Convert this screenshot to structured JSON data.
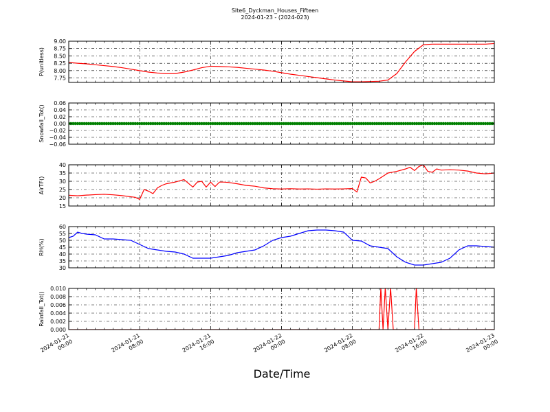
{
  "figure": {
    "title": "Site6_Dyckman_Houses_Fifteen",
    "subtitle": "2024-01-23 - (2024-023)",
    "xlabel": "Date/Time"
  },
  "chart_data": [
    {
      "type": "line",
      "ylabel": "P(unitless)",
      "ylim": [
        7.6,
        9.0
      ],
      "yticks": [
        "7.75",
        "8.00",
        "8.25",
        "8.50",
        "8.75",
        "9.00"
      ],
      "ytick_values": [
        7.75,
        8.0,
        8.25,
        8.5,
        8.75,
        9.0
      ],
      "color": "#ff0000",
      "grid": true,
      "x_hours": [
        0,
        1,
        2,
        3,
        4,
        5,
        6,
        7,
        8,
        9,
        10,
        11,
        12,
        13,
        14,
        15,
        16,
        17,
        18,
        19,
        20,
        21,
        22,
        23,
        24,
        25,
        26,
        27,
        28,
        29,
        30,
        31,
        32,
        33,
        34,
        35,
        36,
        37,
        38,
        39,
        40,
        41,
        42,
        43,
        44,
        45,
        46,
        47,
        48
      ],
      "values": [
        8.28,
        8.25,
        8.23,
        8.2,
        8.17,
        8.14,
        8.1,
        8.05,
        8.0,
        7.95,
        7.92,
        7.9,
        7.9,
        7.95,
        8.02,
        8.1,
        8.15,
        8.14,
        8.13,
        8.11,
        8.08,
        8.05,
        8.02,
        7.98,
        7.93,
        7.88,
        7.84,
        7.8,
        7.76,
        7.72,
        7.68,
        7.65,
        7.62,
        7.62,
        7.63,
        7.64,
        7.68,
        7.9,
        8.3,
        8.65,
        8.88,
        8.9,
        8.9,
        8.9,
        8.9,
        8.9,
        8.9,
        8.9,
        8.92
      ]
    },
    {
      "type": "scatter",
      "ylabel": "Snowfall_Tot()",
      "ylim": [
        -0.06,
        0.06
      ],
      "yticks": [
        "−0.06",
        "−0.04",
        "−0.02",
        "0.00",
        "0.02",
        "0.04",
        "0.06"
      ],
      "ytick_values": [
        -0.06,
        -0.04,
        -0.02,
        0.0,
        0.02,
        0.04,
        0.06
      ],
      "color": "#008000",
      "grid": true,
      "x_range_hours": [
        0,
        48
      ],
      "value": 0.0
    },
    {
      "type": "line",
      "ylabel": "AirTF()",
      "ylim": [
        15,
        40
      ],
      "yticks": [
        "15",
        "20",
        "25",
        "30",
        "35",
        "40"
      ],
      "ytick_values": [
        15,
        20,
        25,
        30,
        35,
        40
      ],
      "color": "#ff0000",
      "grid": true,
      "x_hours": [
        0,
        1,
        2,
        3,
        4,
        5,
        6,
        7,
        7.5,
        8,
        8.5,
        9,
        9.5,
        10,
        10.5,
        11,
        11.5,
        12,
        13,
        14,
        14.5,
        15,
        15.5,
        16,
        16.5,
        17,
        17.5,
        18,
        19,
        20,
        21,
        22,
        23,
        24,
        25,
        26,
        27,
        28,
        29,
        30,
        31,
        32,
        32.5,
        33,
        33.5,
        34,
        34.5,
        35,
        36,
        37,
        38,
        38.5,
        39,
        39.5,
        40,
        40.5,
        41,
        41.5,
        42,
        43,
        44,
        45,
        46,
        47,
        48
      ],
      "values": [
        21.5,
        21.2,
        21.6,
        21.9,
        22.1,
        21.8,
        21.3,
        20.6,
        20.3,
        19.0,
        25.0,
        24.0,
        22.5,
        26.0,
        27.5,
        28.5,
        29.0,
        29.5,
        31.0,
        26.5,
        29.5,
        30.0,
        26.5,
        29.5,
        26.8,
        29.5,
        29.5,
        29.3,
        28.5,
        27.5,
        27.0,
        26.0,
        25.5,
        25.3,
        25.5,
        25.3,
        25.4,
        25.2,
        25.4,
        25.3,
        25.4,
        25.6,
        23.5,
        32.5,
        32.0,
        29.0,
        30.0,
        31.5,
        35.0,
        36.0,
        37.5,
        38.5,
        36.5,
        39.0,
        40.0,
        36.0,
        35.5,
        37.5,
        36.8,
        37.0,
        36.8,
        36.2,
        35.0,
        34.5,
        35.0
      ]
    },
    {
      "type": "line",
      "ylabel": "RH(%)",
      "ylim": [
        30,
        60
      ],
      "yticks": [
        "30",
        "35",
        "40",
        "45",
        "50",
        "55",
        "60"
      ],
      "ytick_values": [
        30,
        35,
        40,
        45,
        50,
        55,
        60
      ],
      "color": "#0000ff",
      "grid": true,
      "x_hours": [
        0,
        0.5,
        1,
        1.5,
        2,
        3,
        4,
        5,
        6,
        7,
        8,
        9,
        10,
        11,
        12,
        13,
        14,
        15,
        16,
        17,
        18,
        19,
        20,
        21,
        22,
        23,
        24,
        25,
        26,
        27,
        28,
        29,
        30,
        31,
        32,
        33,
        34,
        35,
        36,
        37,
        38,
        39,
        40,
        41,
        42,
        43,
        44,
        45,
        46,
        47,
        48
      ],
      "values": [
        52,
        53,
        56,
        55,
        54.5,
        54,
        51,
        51,
        50.5,
        50,
        47,
        44,
        43,
        42,
        41.5,
        40,
        37,
        37,
        37,
        38,
        39,
        41,
        42,
        43,
        46,
        50,
        52,
        53,
        55,
        57,
        57.5,
        57.5,
        57,
        56,
        50,
        49.5,
        46,
        45,
        44,
        38,
        34,
        32,
        32,
        33,
        34,
        37,
        43,
        46,
        46,
        45.5,
        45
      ]
    },
    {
      "type": "line",
      "ylabel": "Rainfall_Tot()",
      "ylim": [
        0.0,
        0.01
      ],
      "yticks": [
        "0.000",
        "0.002",
        "0.004",
        "0.006",
        "0.008",
        "0.010"
      ],
      "ytick_values": [
        0.0,
        0.002,
        0.004,
        0.006,
        0.008,
        0.01
      ],
      "color": "#ff0000",
      "grid": true,
      "x_hours": [
        0,
        35,
        35.2,
        35.45,
        35.7,
        36.0,
        36.3,
        36.6,
        37.0,
        39.0,
        39.2,
        39.5,
        39.8,
        48
      ],
      "values": [
        0,
        0,
        0.0102,
        0,
        0.0102,
        0,
        0.0102,
        0,
        0,
        0,
        0.0102,
        0,
        0,
        0
      ]
    }
  ],
  "xaxis": {
    "range_hours": [
      0,
      48
    ],
    "tick_hours": [
      0,
      8,
      16,
      24,
      32,
      40,
      48
    ],
    "tick_labels": [
      [
        "2024-01-21",
        "00:00"
      ],
      [
        "2024-01-21",
        "08:00"
      ],
      [
        "2024-01-21",
        "16:00"
      ],
      [
        "2024-01-22",
        "00:00"
      ],
      [
        "2024-01-22",
        "08:00"
      ],
      [
        "2024-01-22",
        "16:00"
      ],
      [
        "2024-01-23",
        "00:00"
      ]
    ]
  }
}
